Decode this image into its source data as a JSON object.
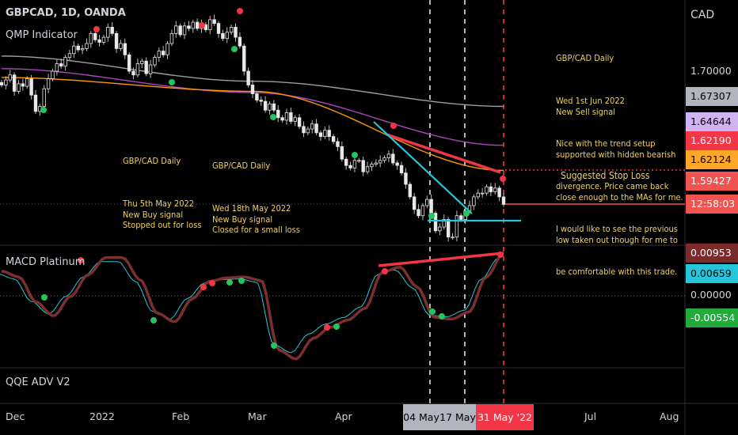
{
  "header": {
    "symbol_line": "GBPCAD, 1D, OANDA",
    "indicator_1": "QMP Indicator",
    "indicator_2": "MACD Platinum",
    "indicator_3": "QQE ADV V2",
    "currency": "CAD"
  },
  "annotations": {
    "may5": {
      "lines": [
        "GBP/CAD Daily",
        "",
        "Thu 5th May 2022",
        "New Buy signal",
        "Stopped out for loss"
      ]
    },
    "may18": {
      "lines": [
        "GBP/CAD Daily",
        "",
        "Wed 18th May 2022",
        "New Buy signal",
        "Closed for a small loss"
      ]
    },
    "jun1": {
      "lines": [
        "GBP/CAD Daily",
        "",
        "Wed 1st Jun 2022",
        "New Sell signal",
        "Nice with the trend setup",
        "supported with hidden bearish",
        "divergence. Price came back",
        "close enough to the MAs for me.",
        "I would like to see the previous",
        "low taken out though for me to",
        "be comfortable with this trade."
      ]
    },
    "stop_loss": "Suggested Stop Loss"
  },
  "price_axis": {
    "tick": "1.70000",
    "tags": [
      {
        "label": "1.67307",
        "color": "#b2b5be",
        "text_color": "#000000"
      },
      {
        "label": "1.64644",
        "color": "#d1b3f2",
        "text_color": "#000000"
      },
      {
        "label": "1.62190",
        "color": "#f23645",
        "text_color": "#ffffff"
      },
      {
        "label": "1.62124",
        "color": "#ffa726",
        "text_color": "#000000"
      },
      {
        "label": "1.59427",
        "color": "#f05350",
        "text_color": "#ffffff"
      },
      {
        "label": "12:58:03",
        "color": "#f05350",
        "text_color": "#ffffff"
      }
    ]
  },
  "macd_axis": {
    "tick": "0.00000",
    "tags": [
      {
        "label": "0.00953",
        "color": "#7b2b2b",
        "text_color": "#ffffff"
      },
      {
        "label": "0.00659",
        "color": "#26c6da",
        "text_color": "#000000"
      },
      {
        "label": "-0.00554",
        "color": "#22ab3a",
        "text_color": "#ffffff"
      }
    ]
  },
  "time_axis": {
    "labels": [
      "Dec",
      "2022",
      "Feb",
      "Mar",
      "Apr",
      "Jul",
      "Aug"
    ],
    "tags": [
      {
        "label": "04 May",
        "color": "#b2b5be"
      },
      {
        "label": "17 May",
        "color": "#b2b5be"
      },
      {
        "label": "31 May '22",
        "color": "#f23645"
      }
    ]
  },
  "chart_data": {
    "type": "candlestick",
    "symbol": "GBPCAD",
    "timeframe": "1D",
    "close_approx": [
      1.689,
      1.693,
      1.697,
      1.684,
      1.69,
      1.688,
      1.694,
      1.681,
      1.668,
      1.672,
      1.686,
      1.694,
      1.7,
      1.706,
      1.704,
      1.711,
      1.714,
      1.72,
      1.717,
      1.718,
      1.722,
      1.73,
      1.725,
      1.723,
      1.727,
      1.735,
      1.73,
      1.718,
      1.722,
      1.713,
      1.7,
      1.697,
      1.706,
      1.708,
      1.698,
      1.705,
      1.711,
      1.716,
      1.713,
      1.722,
      1.73,
      1.736,
      1.729,
      1.736,
      1.734,
      1.739,
      1.734,
      1.737,
      1.733,
      1.741,
      1.738,
      1.73,
      1.726,
      1.731,
      1.735,
      1.727,
      1.72,
      1.7,
      1.689,
      1.682,
      1.677,
      1.676,
      1.669,
      1.674,
      1.669,
      1.663,
      1.661,
      1.667,
      1.66,
      1.663,
      1.656,
      1.651,
      1.654,
      1.658,
      1.651,
      1.648,
      1.653,
      1.648,
      1.644,
      1.64,
      1.63,
      1.625,
      1.623,
      1.629,
      1.629,
      1.62,
      1.624,
      1.626,
      1.627,
      1.629,
      1.631,
      1.634,
      1.627,
      1.625,
      1.619,
      1.61,
      1.6,
      1.59,
      1.585,
      1.593,
      1.598,
      1.587,
      1.573,
      1.576,
      1.582,
      1.568,
      1.568,
      1.585,
      1.582,
      1.589,
      1.593,
      1.6,
      1.603,
      1.603,
      1.608,
      1.604,
      1.607,
      1.6,
      1.594
    ],
    "moving_averages": [
      {
        "color": "#9e9e9e",
        "values": [
          1.712,
          1.692,
          1.672
        ]
      },
      {
        "color": "#ab47bc",
        "values": [
          1.702,
          1.683,
          1.641
        ]
      },
      {
        "color": "#ff9800",
        "values": [
          1.695,
          1.684,
          1.621
        ]
      }
    ],
    "macd_approx": [
      0.0055,
      0.0042,
      -0.0014,
      -0.0045,
      -0.0001,
      0.0047,
      0.0085,
      0.0085,
      0.0036,
      -0.0039,
      -0.0058,
      -0.0007,
      0.0032,
      0.004,
      0.0042,
      0.0034,
      -0.0121,
      -0.0141,
      -0.0095,
      -0.007,
      -0.0054,
      -0.0028,
      0.0053,
      0.0064,
      0.002,
      -0.0048,
      -0.0052,
      -0.0036,
      0.0042,
      0.0095
    ]
  }
}
